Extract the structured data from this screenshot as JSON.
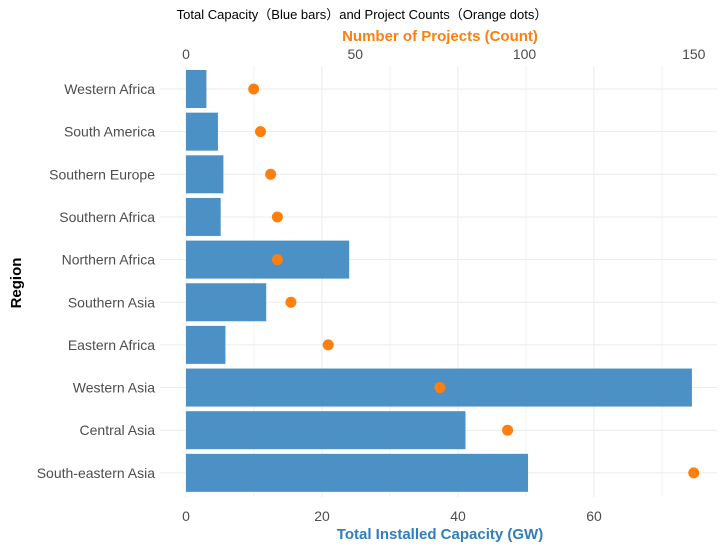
{
  "chart_data": {
    "type": "bar",
    "title": "Total Capacity（Blue bars）and Project Counts（Orange dots）",
    "ylabel": "Region",
    "categories": [
      "Western Africa",
      "South America",
      "Southern Europe",
      "Southern Africa",
      "Northern Africa",
      "Southern Asia",
      "Eastern Africa",
      "Western Asia",
      "Central Asia",
      "South-eastern Asia"
    ],
    "series": [
      {
        "name": "Total Installed Capacity (GW)",
        "type": "bar",
        "axis": "bottom",
        "color": "#3d88c0",
        "values": [
          3.0,
          4.7,
          5.5,
          5.1,
          24.0,
          11.8,
          5.8,
          74.4,
          41.1,
          50.3
        ]
      },
      {
        "name": "Number of Projects (Count)",
        "type": "scatter",
        "axis": "top",
        "color": "#ff7f0e",
        "values": [
          20,
          22,
          25,
          27,
          27,
          31,
          42,
          75,
          95,
          150
        ]
      }
    ],
    "x_bottom": {
      "label": "Total Installed Capacity (GW)",
      "color": "#2f7fbf",
      "range": [
        0,
        78
      ],
      "ticks": [
        0,
        20,
        40,
        60
      ],
      "tick_labels": [
        "0",
        "20",
        "40",
        "60"
      ],
      "minor_gridlines": [
        10,
        30,
        50,
        70
      ]
    },
    "x_top": {
      "label": "Number of Projects (Count)",
      "color": "#ff7f0e",
      "range": [
        0,
        156
      ],
      "ticks": [
        0,
        50,
        100,
        150
      ],
      "tick_labels": [
        "0",
        "50",
        "100",
        "150"
      ]
    },
    "grid": true,
    "legend": "none"
  }
}
